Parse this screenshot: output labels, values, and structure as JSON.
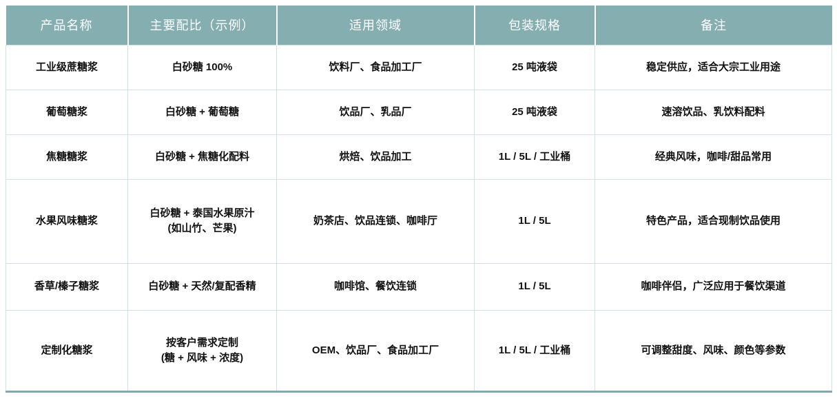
{
  "table": {
    "columns": [
      {
        "label": "产品名称"
      },
      {
        "label": "主要配比（示例）"
      },
      {
        "label": "适用领域"
      },
      {
        "label": "包装规格"
      },
      {
        "label": "备注"
      }
    ],
    "rows": [
      {
        "product": "工业级蔗糖浆",
        "ratio": "白砂糖 100%",
        "applications": "饮料厂、食品加工厂",
        "packaging": "25 吨液袋",
        "remarks": "稳定供应，适合大宗工业用途"
      },
      {
        "product": "葡萄糖浆",
        "ratio": "白砂糖 + 葡萄糖",
        "applications": "饮品厂、乳品厂",
        "packaging": "25 吨液袋",
        "remarks": "速溶饮品、乳饮料配料"
      },
      {
        "product": "焦糖糖浆",
        "ratio": "白砂糖 + 焦糖化配料",
        "applications": "烘焙、饮品加工",
        "packaging": "1L / 5L / 工业桶",
        "remarks": "经典风味，咖啡/甜品常用"
      },
      {
        "product": "水果风味糖浆",
        "ratio": "白砂糖 + 泰国水果原汁\n(如山竹、芒果)",
        "applications": "奶茶店、饮品连锁、咖啡厅",
        "packaging": "1L / 5L",
        "remarks": "特色产品，适合现制饮品使用"
      },
      {
        "product": "香草/榛子糖浆",
        "ratio": "白砂糖 + 天然/复配香精",
        "applications": "咖啡馆、餐饮连锁",
        "packaging": "1L / 5L",
        "remarks": "咖啡伴侣，广泛应用于餐饮渠道"
      },
      {
        "product": "定制化糖浆",
        "ratio": "按客户需求定制\n(糖 + 风味 + 浓度)",
        "applications": "OEM、饮品厂、食品加工厂",
        "packaging": "1L / 5L / 工业桶",
        "remarks": "可调整甜度、风味、颜色等参数"
      }
    ]
  },
  "colors": {
    "header_bg": "#84aeb0",
    "header_text": "#ffffff",
    "grid_line": "#cfe2e4",
    "bottom_border": "#7fa9ad",
    "body_text": "#111111"
  }
}
